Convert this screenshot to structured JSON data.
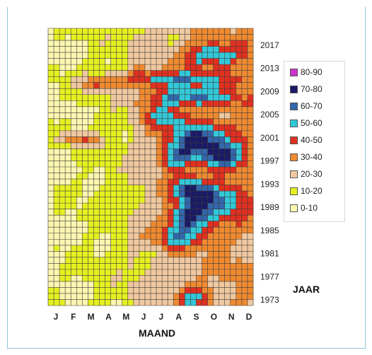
{
  "chart_data": {
    "type": "heatmap",
    "title": "",
    "xlabel": "MAAND",
    "ylabel": "JAAR",
    "x_categories": [
      "J",
      "F",
      "M",
      "A",
      "M",
      "J",
      "J",
      "A",
      "S",
      "O",
      "N",
      "D"
    ],
    "y_tick_labels": [
      "2017",
      "2013",
      "2009",
      "2005",
      "2001",
      "1997",
      "1993",
      "1989",
      "1985",
      "1981",
      "1977",
      "1973"
    ],
    "y_range": [
      1973,
      2019
    ],
    "legend": [
      {
        "label": "80-90",
        "color": "#cc33cc"
      },
      {
        "label": "70-80",
        "color": "#1a1a66"
      },
      {
        "label": "60-70",
        "color": "#3366aa"
      },
      {
        "label": "50-60",
        "color": "#33c8d8"
      },
      {
        "label": "40-50",
        "color": "#e03020"
      },
      {
        "label": "30-40",
        "color": "#f08a30"
      },
      {
        "label": "20-30",
        "color": "#f0c8a0"
      },
      {
        "label": "10-20",
        "color": "#e6f020"
      },
      {
        "label": "0-10",
        "color": "#fbf6b0"
      }
    ],
    "legend_position": "right",
    "grid": true
  }
}
